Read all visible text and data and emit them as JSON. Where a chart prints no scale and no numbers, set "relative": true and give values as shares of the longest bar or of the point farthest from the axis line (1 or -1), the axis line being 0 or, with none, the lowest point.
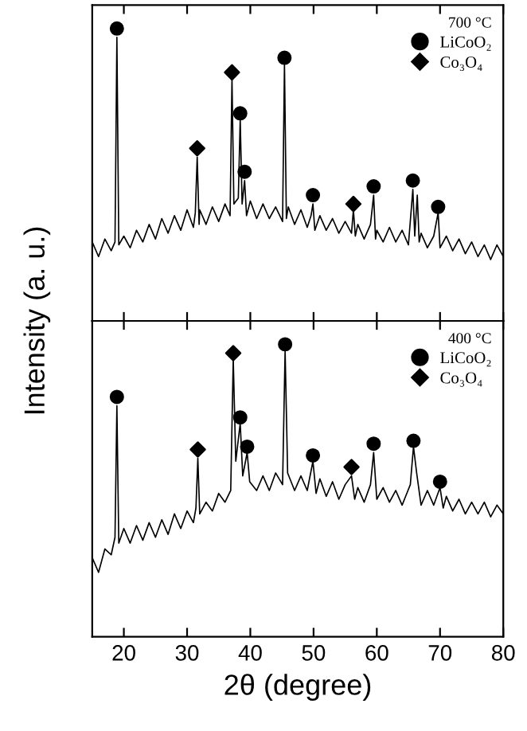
{
  "chart_data": [
    {
      "type": "line",
      "relative": true,
      "legend_title": "700 °C",
      "legend": "top right",
      "ylabel": "Intensity (a. u.)",
      "xlim": [
        15,
        80
      ],
      "xticks": [
        20,
        30,
        40,
        50,
        60,
        70,
        80
      ],
      "tick_labels": false,
      "series": [
        {
          "color": "#000000",
          "marker": "none",
          "x": [
            15,
            16,
            17,
            18,
            18.6,
            18.9,
            19.2,
            20,
            21,
            22,
            23,
            24,
            25,
            26,
            27,
            28,
            29,
            30,
            31,
            31.3,
            31.6,
            31.9,
            32,
            33,
            34,
            35,
            36,
            36.8,
            37.1,
            37.4,
            38.1,
            38.4,
            38.7,
            39.1,
            39.4,
            40,
            41,
            42,
            43,
            44,
            45.1,
            45.4,
            45.7,
            46,
            47,
            48,
            49,
            49.6,
            49.9,
            50.2,
            51,
            52,
            53,
            54,
            55,
            56,
            56.3,
            56.6,
            57,
            58,
            59,
            59.5,
            59.8,
            60,
            61,
            62,
            63,
            64,
            65,
            65.7,
            66.0,
            66.4,
            66.7,
            67,
            68,
            69,
            69.7,
            70,
            71,
            72,
            73,
            74,
            75,
            76,
            77,
            78,
            79,
            80
          ],
          "values": [
            0.27,
            0.22,
            0.28,
            0.24,
            0.27,
            0.97,
            0.26,
            0.29,
            0.25,
            0.31,
            0.27,
            0.33,
            0.28,
            0.35,
            0.3,
            0.36,
            0.31,
            0.38,
            0.32,
            0.37,
            0.56,
            0.33,
            0.38,
            0.33,
            0.39,
            0.34,
            0.4,
            0.36,
            0.83,
            0.4,
            0.42,
            0.69,
            0.4,
            0.48,
            0.36,
            0.41,
            0.35,
            0.4,
            0.35,
            0.39,
            0.34,
            0.88,
            0.35,
            0.39,
            0.33,
            0.38,
            0.32,
            0.36,
            0.4,
            0.31,
            0.36,
            0.31,
            0.35,
            0.3,
            0.34,
            0.3,
            0.38,
            0.29,
            0.33,
            0.28,
            0.33,
            0.43,
            0.28,
            0.31,
            0.27,
            0.32,
            0.27,
            0.31,
            0.26,
            0.45,
            0.29,
            0.43,
            0.27,
            0.3,
            0.25,
            0.29,
            0.37,
            0.25,
            0.29,
            0.24,
            0.28,
            0.23,
            0.27,
            0.22,
            0.26,
            0.21,
            0.26,
            0.22
          ]
        },
        {
          "type": "scatter",
          "name": "LiCoO₂",
          "color": "#000000",
          "marker": "circle",
          "x": [
            18.9,
            38.4,
            39.1,
            45.4,
            49.9,
            59.5,
            65.7,
            69.7
          ],
          "values": [
            1.0,
            0.71,
            0.51,
            0.9,
            0.43,
            0.46,
            0.48,
            0.39
          ]
        },
        {
          "type": "scatter",
          "name": "Co₃O₄",
          "color": "#000000",
          "marker": "diamond",
          "x": [
            31.6,
            37.1,
            56.3
          ],
          "values": [
            0.59,
            0.85,
            0.4
          ]
        }
      ]
    },
    {
      "type": "line",
      "relative": true,
      "legend_title": "400 °C",
      "legend": "top right",
      "xlabel": "2θ (degree)",
      "xlim": [
        15,
        80
      ],
      "xticks": [
        20,
        30,
        40,
        50,
        60,
        70,
        80
      ],
      "tick_labels": "x",
      "series": [
        {
          "color": "#000000",
          "marker": "none",
          "x": [
            15,
            16,
            17,
            18,
            18.6,
            18.9,
            19.2,
            20,
            21,
            22,
            23,
            24,
            25,
            26,
            27,
            28,
            29,
            30,
            31,
            31.4,
            31.7,
            32,
            33,
            34,
            35,
            36,
            36.9,
            37.3,
            37.7,
            38.4,
            38.8,
            39.5,
            39.9,
            41,
            42,
            43,
            44,
            45.1,
            45.5,
            45.9,
            47,
            48,
            49,
            49.9,
            50.4,
            51,
            52,
            53,
            54,
            55,
            56.0,
            56.5,
            57,
            58,
            59,
            59.5,
            60,
            61,
            62,
            63,
            64,
            65.3,
            65.8,
            66.3,
            67,
            68,
            69,
            70.0,
            70.5,
            71,
            72,
            73,
            74,
            75,
            76,
            77,
            78,
            79,
            80
          ],
          "values": [
            0.27,
            0.22,
            0.3,
            0.28,
            0.34,
            0.79,
            0.32,
            0.37,
            0.32,
            0.38,
            0.33,
            0.39,
            0.34,
            0.4,
            0.35,
            0.42,
            0.37,
            0.43,
            0.39,
            0.44,
            0.61,
            0.42,
            0.46,
            0.43,
            0.49,
            0.46,
            0.5,
            0.95,
            0.6,
            0.73,
            0.55,
            0.63,
            0.53,
            0.5,
            0.55,
            0.5,
            0.56,
            0.52,
            0.98,
            0.56,
            0.5,
            0.55,
            0.5,
            0.6,
            0.49,
            0.54,
            0.48,
            0.53,
            0.47,
            0.52,
            0.55,
            0.47,
            0.51,
            0.46,
            0.52,
            0.63,
            0.47,
            0.51,
            0.46,
            0.5,
            0.45,
            0.52,
            0.65,
            0.56,
            0.45,
            0.5,
            0.45,
            0.51,
            0.44,
            0.48,
            0.43,
            0.47,
            0.42,
            0.46,
            0.42,
            0.46,
            0.41,
            0.45,
            0.42
          ]
        },
        {
          "type": "scatter",
          "name": "LiCoO₂",
          "color": "#000000",
          "marker": "circle",
          "x": [
            18.9,
            38.4,
            39.5,
            45.5,
            49.9,
            59.5,
            65.8,
            70.0
          ],
          "values": [
            0.82,
            0.75,
            0.65,
            1.0,
            0.62,
            0.66,
            0.67,
            0.53
          ]
        },
        {
          "type": "scatter",
          "name": "Co₃O₄",
          "color": "#000000",
          "marker": "diamond",
          "x": [
            31.7,
            37.3,
            56.0
          ],
          "values": [
            0.64,
            0.97,
            0.58
          ]
        }
      ]
    }
  ]
}
